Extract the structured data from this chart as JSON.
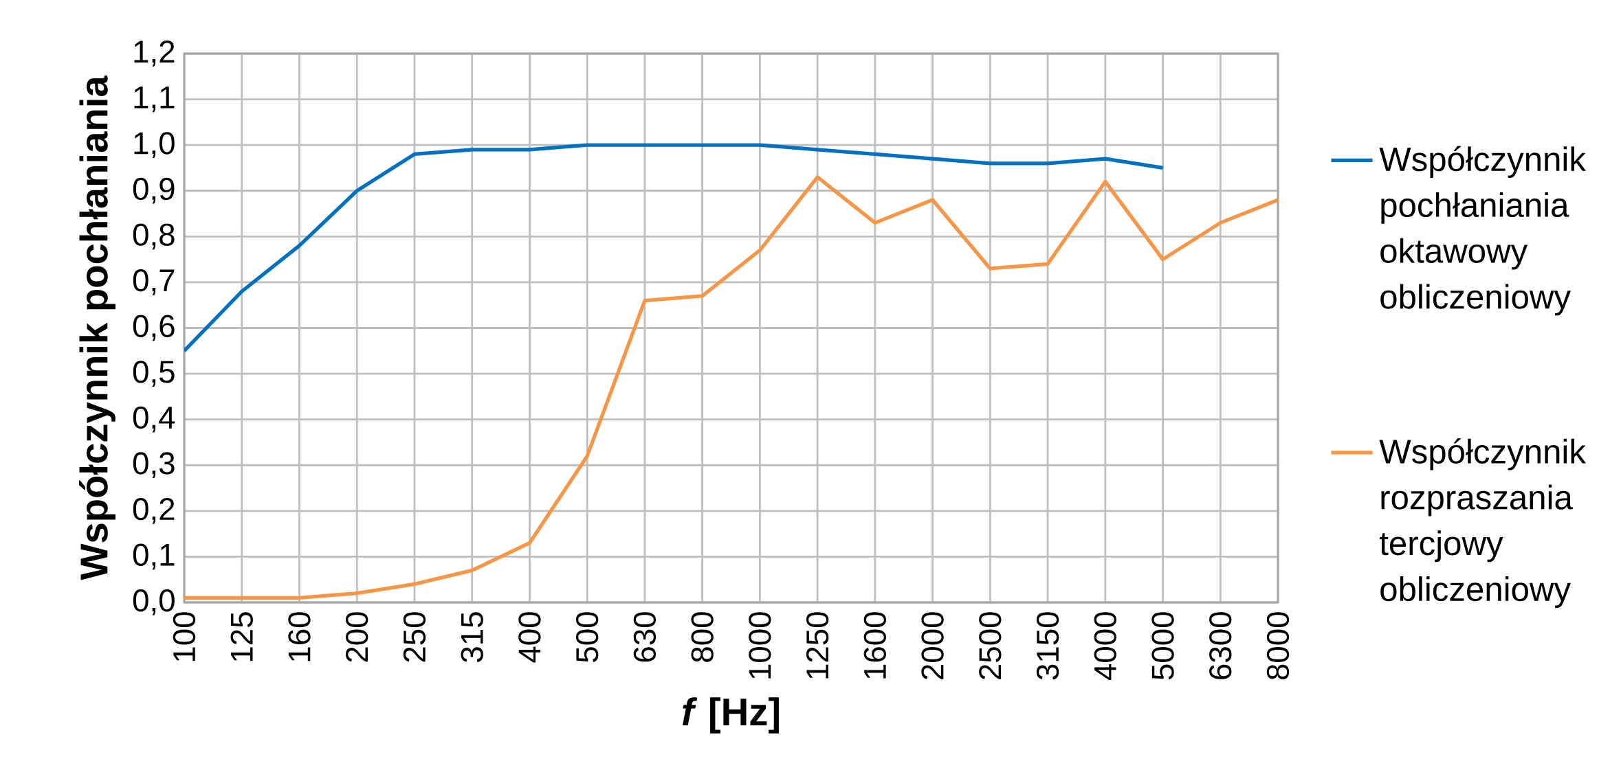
{
  "chart_data": {
    "type": "line",
    "xlabel": "*f* [Hz]",
    "ylabel": "Współczynnik pochłaniania",
    "categories": [
      "100",
      "125",
      "160",
      "200",
      "250",
      "315",
      "400",
      "500",
      "630",
      "800",
      "1000",
      "1250",
      "1600",
      "2000",
      "2500",
      "3150",
      "4000",
      "5000",
      "6300",
      "8000"
    ],
    "series": [
      {
        "name": "Współczynnik pochłaniania oktawowy obliczeniowy",
        "color": "#0070c0",
        "values": [
          0.55,
          0.68,
          0.78,
          0.9,
          0.98,
          0.99,
          0.99,
          1.0,
          1.0,
          1.0,
          1.0,
          0.99,
          0.98,
          0.97,
          0.96,
          0.96,
          0.97,
          0.95,
          null,
          null
        ]
      },
      {
        "name": "Współczynnik rozpraszania tercjowy obliczeniowy",
        "color": "#f79646",
        "values": [
          0.01,
          0.01,
          0.01,
          0.02,
          0.04,
          0.07,
          0.13,
          0.32,
          0.66,
          0.67,
          0.77,
          0.93,
          0.83,
          0.88,
          0.73,
          0.74,
          0.92,
          0.75,
          0.83,
          0.88
        ]
      }
    ],
    "ylim": [
      0,
      1.2
    ],
    "yticks": [
      {
        "value": 0,
        "label": "0,0"
      },
      {
        "value": 0.1,
        "label": "0,1"
      },
      {
        "value": 0.2,
        "label": "0,2"
      },
      {
        "value": 0.3,
        "label": "0,3"
      },
      {
        "value": 0.4,
        "label": "0,4"
      },
      {
        "value": 0.5,
        "label": "0,5"
      },
      {
        "value": 0.6,
        "label": "0,6"
      },
      {
        "value": 0.7,
        "label": "0,7"
      },
      {
        "value": 0.8,
        "label": "0,8"
      },
      {
        "value": 0.9,
        "label": "0,9"
      },
      {
        "value": 1.0,
        "label": "1,0"
      },
      {
        "value": 1.1,
        "label": "1,1"
      },
      {
        "value": 1.2,
        "label": "1,2"
      }
    ],
    "grid": true,
    "legend": "right",
    "line_style": "solid"
  }
}
